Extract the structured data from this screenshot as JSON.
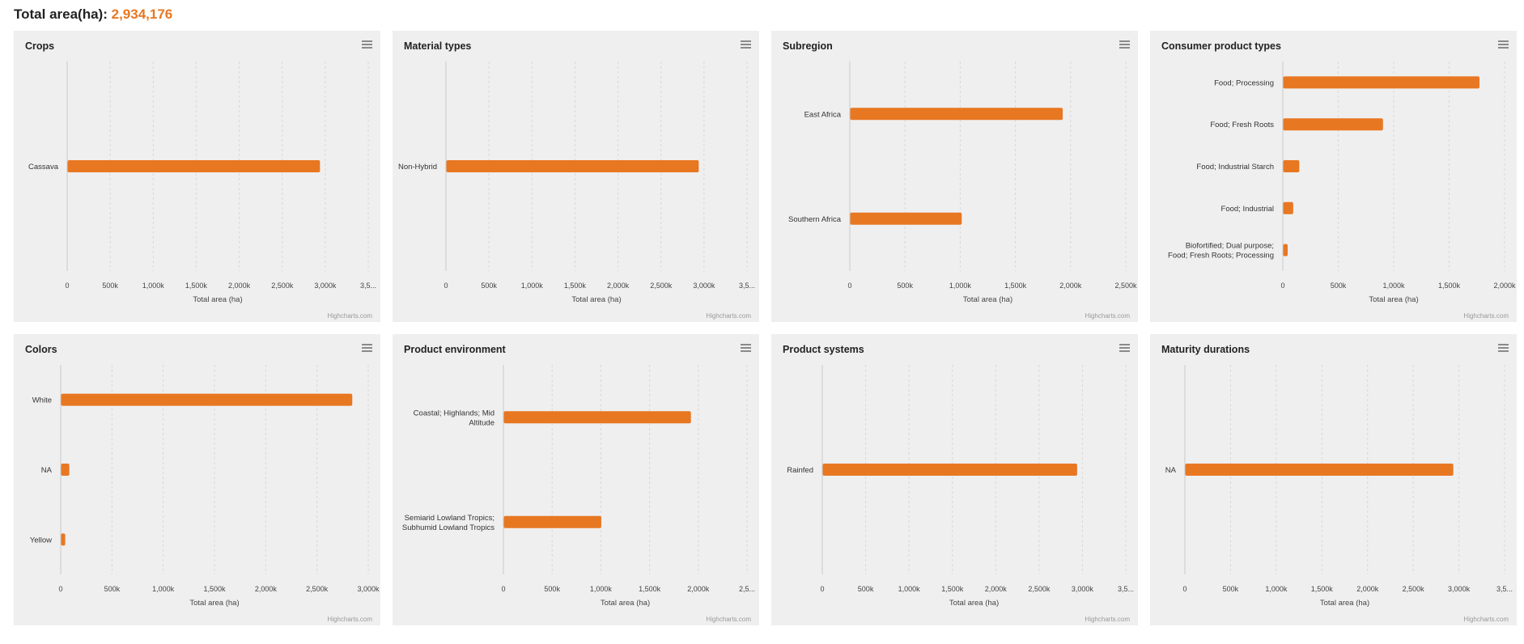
{
  "header": {
    "label": "Total area(ha):",
    "value": "2,934,176"
  },
  "colors": {
    "bar": "#e87722",
    "accent": "#e87722",
    "panel_bg": "#efefef"
  },
  "menu_icon": "hamburger-icon",
  "credit": "Highcharts.com",
  "chart_data": [
    {
      "type": "bar",
      "title": "Crops",
      "xlabel": "Total area (ha)",
      "categories": [
        "Cassava"
      ],
      "values": [
        2934176
      ],
      "ticks": [
        "0",
        "500k",
        "1,000k",
        "1,500k",
        "2,000k",
        "2,500k",
        "3,000k",
        "3,5..."
      ],
      "xlim": [
        0,
        3500000
      ]
    },
    {
      "type": "bar",
      "title": "Material types",
      "xlabel": "Total area (ha)",
      "categories": [
        "Non-Hybrid"
      ],
      "values": [
        2934176
      ],
      "ticks": [
        "0",
        "500k",
        "1,000k",
        "1,500k",
        "2,000k",
        "2,500k",
        "3,000k",
        "3,5..."
      ],
      "xlim": [
        0,
        3500000
      ]
    },
    {
      "type": "bar",
      "title": "Subregion",
      "xlabel": "Total area (ha)",
      "categories": [
        "East Africa",
        "Southern Africa"
      ],
      "values": [
        1925000,
        1010000
      ],
      "ticks": [
        "0",
        "500k",
        "1,000k",
        "1,500k",
        "2,000k",
        "2,500k"
      ],
      "xlim": [
        0,
        2500000
      ]
    },
    {
      "type": "bar",
      "title": "Consumer product types",
      "xlabel": "Total area (ha)",
      "categories": [
        "Food; Processing",
        "Food; Fresh Roots",
        "Food; Industrial Starch",
        "Food; Industrial",
        "Biofortified; Dual purpose; Food; Fresh Roots; Processing"
      ],
      "values": [
        1770000,
        900000,
        145000,
        90000,
        40000
      ],
      "ticks": [
        "0",
        "500k",
        "1,000k",
        "1,500k",
        "2,000k"
      ],
      "xlim": [
        0,
        2000000
      ]
    },
    {
      "type": "bar",
      "title": "Colors",
      "xlabel": "Total area (ha)",
      "categories": [
        "White",
        "NA",
        "Yellow"
      ],
      "values": [
        2840000,
        80000,
        40000
      ],
      "ticks": [
        "0",
        "500k",
        "1,000k",
        "1,500k",
        "2,000k",
        "2,500k",
        "3,000k"
      ],
      "xlim": [
        0,
        3000000
      ]
    },
    {
      "type": "bar",
      "title": "Product environment",
      "xlabel": "Total area (ha)",
      "categories": [
        "Coastal; Highlands; Mid Altitude",
        "Semiarid Lowland Tropics; Subhumid Lowland Tropics"
      ],
      "values": [
        1920000,
        1000000
      ],
      "ticks": [
        "0",
        "500k",
        "1,000k",
        "1,500k",
        "2,000k",
        "2,5..."
      ],
      "xlim": [
        0,
        2500000
      ]
    },
    {
      "type": "bar",
      "title": "Product systems",
      "xlabel": "Total area (ha)",
      "categories": [
        "Rainfed"
      ],
      "values": [
        2934176
      ],
      "ticks": [
        "0",
        "500k",
        "1,000k",
        "1,500k",
        "2,000k",
        "2,500k",
        "3,000k",
        "3,5..."
      ],
      "xlim": [
        0,
        3500000
      ]
    },
    {
      "type": "bar",
      "title": "Maturity durations",
      "xlabel": "Total area (ha)",
      "categories": [
        "NA"
      ],
      "values": [
        2934176
      ],
      "ticks": [
        "0",
        "500k",
        "1,000k",
        "1,500k",
        "2,000k",
        "2,500k",
        "3,000k",
        "3,5..."
      ],
      "xlim": [
        0,
        3500000
      ]
    }
  ]
}
